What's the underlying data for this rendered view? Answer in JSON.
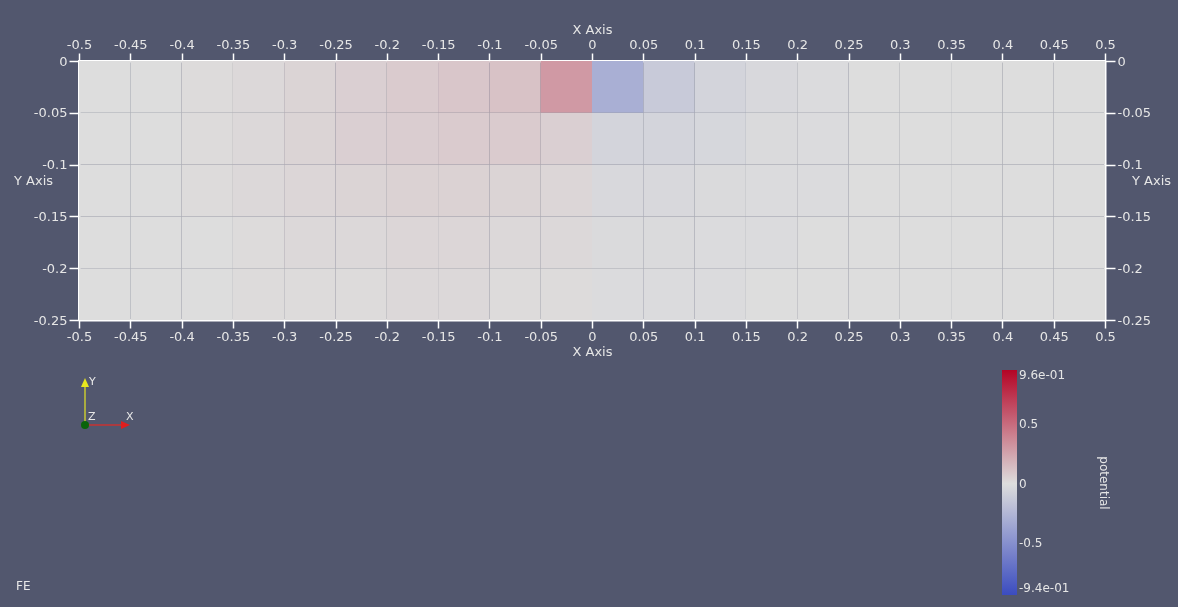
{
  "chart_data": {
    "type": "heatmap",
    "xlabel": "X Axis",
    "x2label": "X Axis",
    "ylabel": "Y Axis",
    "y2label": "Y Axis",
    "clabel": "potential",
    "x": [
      -0.475,
      -0.425,
      -0.375,
      -0.325,
      -0.275,
      -0.225,
      -0.175,
      -0.125,
      -0.075,
      -0.025,
      0.025,
      0.075,
      0.125,
      0.175,
      0.225,
      0.275,
      0.325,
      0.375,
      0.425,
      0.475
    ],
    "y": [
      -0.025,
      -0.075,
      -0.125,
      -0.175,
      -0.225
    ],
    "cells": [
      [
        0,
        0,
        0.01,
        0.02,
        0.04,
        0.06,
        0.08,
        0.1,
        0.12,
        0.3,
        -0.3,
        -0.12,
        -0.06,
        -0.03,
        -0.01,
        0,
        0,
        0,
        0,
        0
      ],
      [
        0,
        0,
        0.01,
        0.02,
        0.04,
        0.06,
        0.07,
        0.08,
        0.08,
        0.06,
        -0.06,
        -0.06,
        -0.04,
        -0.02,
        -0.01,
        0,
        0,
        0,
        0,
        0
      ],
      [
        0,
        0,
        0.01,
        0.02,
        0.03,
        0.04,
        0.05,
        0.05,
        0.04,
        0.03,
        -0.03,
        -0.03,
        -0.02,
        -0.01,
        -0.01,
        0,
        0,
        0,
        0,
        0
      ],
      [
        0,
        0,
        0,
        0.01,
        0.02,
        0.02,
        0.03,
        0.03,
        0.02,
        0.02,
        -0.02,
        -0.02,
        -0.01,
        -0.01,
        0,
        0,
        0,
        0,
        0,
        0
      ],
      [
        0,
        0,
        0,
        0.01,
        0.01,
        0.01,
        0.02,
        0.02,
        0.01,
        0.01,
        -0.01,
        -0.01,
        -0.01,
        0,
        0,
        0,
        0,
        0,
        0,
        0
      ]
    ],
    "xlim": [
      -0.5,
      0.5
    ],
    "xticks": [
      -0.5,
      -0.45,
      -0.4,
      -0.35,
      -0.3,
      -0.25,
      -0.2,
      -0.15,
      -0.1,
      -0.05,
      0,
      0.05,
      0.1,
      0.15,
      0.2,
      0.25,
      0.3,
      0.35,
      0.4,
      0.45,
      0.5
    ],
    "x2lim": [
      -0.5,
      0.5
    ],
    "x2ticks": [
      -0.5,
      -0.45,
      -0.4,
      -0.35,
      -0.3,
      -0.25,
      -0.2,
      -0.15,
      -0.1,
      -0.05,
      0,
      0.05,
      0.1,
      0.15,
      0.2,
      0.25,
      0.3,
      0.35,
      0.4,
      0.45,
      0.5
    ],
    "ylim": [
      -0.25,
      0
    ],
    "yticks": [
      -0.25,
      -0.2,
      -0.15,
      -0.1,
      -0.05,
      0
    ],
    "y2lim": [
      -0.25,
      0
    ],
    "y2ticks": [
      -0.25,
      -0.2,
      -0.15,
      -0.1,
      -0.05,
      0
    ],
    "clim": [
      -0.94,
      0.96
    ],
    "cticks": [
      {
        "value": 0.96,
        "label": "9.6e-01"
      },
      0.5,
      0,
      -0.5,
      {
        "value": -0.94,
        "label": "-9.4e-01"
      }
    ],
    "annotations": [
      "Y",
      "Z",
      "X",
      "FE"
    ]
  }
}
